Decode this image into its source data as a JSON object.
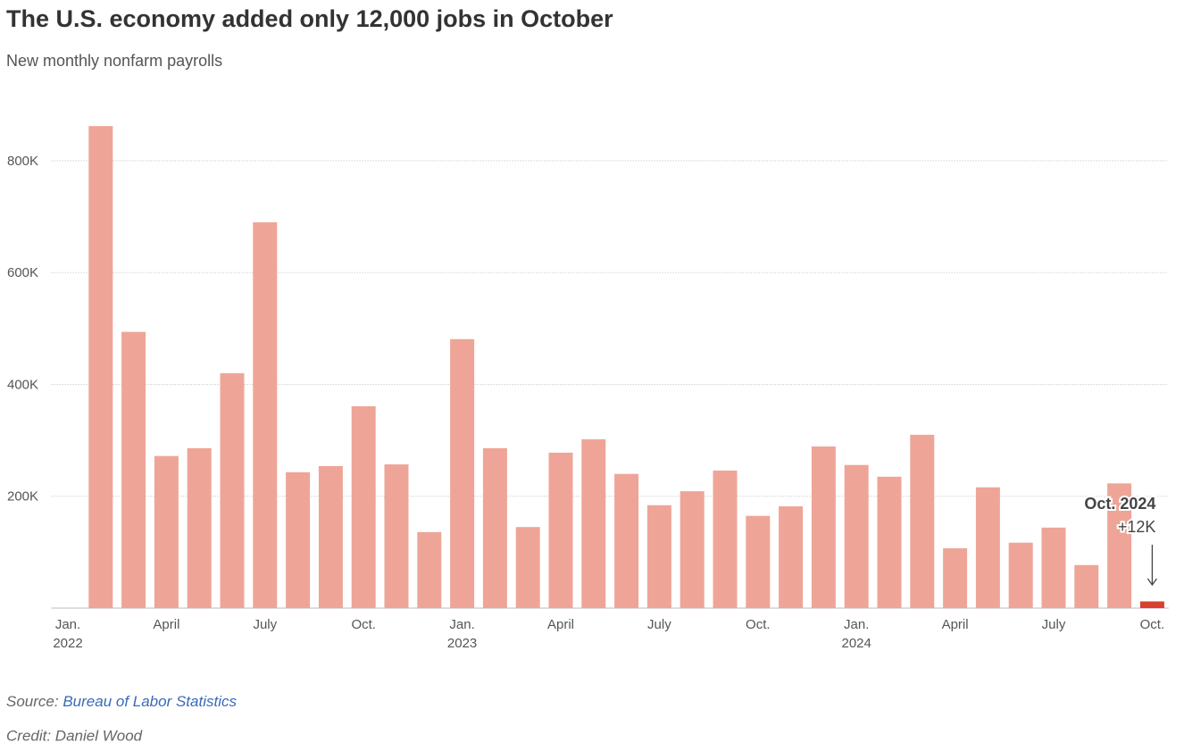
{
  "chart_data": {
    "type": "bar",
    "title": "The U.S. economy added only 12,000 jobs in October",
    "subtitle": "New monthly nonfarm payrolls",
    "categories": [
      "Jan.",
      null,
      null,
      "April",
      null,
      null,
      "July",
      null,
      null,
      "Oct.",
      null,
      null,
      "Jan.",
      null,
      null,
      "April",
      null,
      null,
      "July",
      null,
      null,
      "Oct.",
      null,
      null,
      "Jan.",
      null,
      null,
      "April",
      null,
      null,
      "July",
      null,
      null,
      "Oct."
    ],
    "year_labels": [
      "2022",
      null,
      null,
      null,
      null,
      null,
      null,
      null,
      null,
      null,
      null,
      null,
      "2023",
      null,
      null,
      null,
      null,
      null,
      null,
      null,
      null,
      null,
      null,
      null,
      "2024",
      null,
      null,
      null,
      null,
      null,
      null,
      null,
      null,
      null
    ],
    "values": [
      null,
      862000,
      494000,
      272000,
      286000,
      420000,
      690000,
      243000,
      254000,
      361000,
      257000,
      136000,
      481000,
      286000,
      145000,
      278000,
      302000,
      240000,
      184000,
      209000,
      246000,
      165000,
      182000,
      289000,
      256000,
      235000,
      310000,
      107000,
      216000,
      117000,
      144000,
      77000,
      223000,
      12000
    ],
    "value_labels": [
      null,
      null,
      null,
      null,
      null,
      null,
      null,
      null,
      null,
      null,
      null,
      null,
      null,
      null,
      null,
      null,
      null,
      null,
      null,
      null,
      null,
      null,
      null,
      null,
      null,
      null,
      null,
      null,
      null,
      null,
      null,
      null,
      null,
      "+12K"
    ],
    "color": "#eea597",
    "highlight_color": "#d9412e",
    "highlight_index": 33,
    "annotation": "Oct. 2024",
    "ylim": [
      0,
      870000
    ],
    "yticks": [
      {
        "value": 0,
        "label": ""
      },
      {
        "value": 200000,
        "label": "200K"
      },
      {
        "value": 400000,
        "label": "400K"
      },
      {
        "value": 600000,
        "label": "600K"
      },
      {
        "value": 800000,
        "label": "800K"
      }
    ],
    "grid": true,
    "source_label": "Source:",
    "source": "Bureau of Labor Statistics",
    "credit": "Credit: Daniel Wood"
  }
}
